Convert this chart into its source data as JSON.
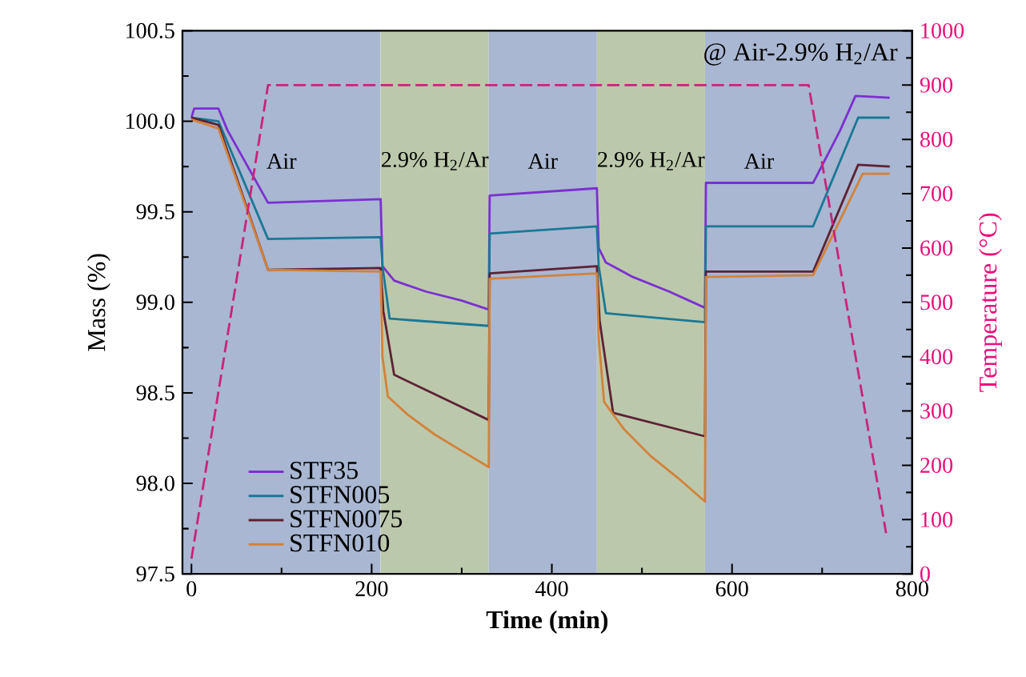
{
  "chart_data": {
    "type": "line",
    "xlabel": "Time (min)",
    "ylabel": "Mass (%)",
    "y2label": "Temperature (°C)",
    "xlim": [
      -10,
      800
    ],
    "xticks": [
      0,
      200,
      400,
      600,
      800
    ],
    "ylim": [
      97.5,
      100.5
    ],
    "yticks": [
      97.5,
      {
        "value": 98,
        "label": "98.0"
      },
      98.5,
      {
        "value": 99,
        "label": "99.0"
      },
      99.5,
      {
        "value": 100,
        "label": "100.0"
      },
      100.5
    ],
    "y2lim": [
      0,
      1000
    ],
    "y2ticks": [
      0,
      100,
      200,
      300,
      400,
      500,
      600,
      700,
      800,
      900,
      1000
    ],
    "annotations": [
      "@ Air-2.9% H$_{2}$/Ar"
    ],
    "bands": [
      {
        "axis": "x",
        "from": -10,
        "to": 210,
        "label": "Air",
        "color": "#a9b7d2"
      },
      {
        "axis": "x",
        "from": 210,
        "to": 330,
        "label": "2.9% H$_{2}$/Ar",
        "color": "#bcc8ab"
      },
      {
        "axis": "x",
        "from": 330,
        "to": 450,
        "label": "Air",
        "color": "#a9b7d2"
      },
      {
        "axis": "x",
        "from": 450,
        "to": 570,
        "label": "2.9% H$_{2}$/Ar",
        "color": "#bcc8ab"
      },
      {
        "axis": "x",
        "from": 570,
        "to": 800,
        "label": "Air",
        "color": "#a9b7d2"
      }
    ],
    "legend": "bottom left",
    "marker": "none",
    "series": [
      {
        "name": "STF35",
        "color": "#7b30d0",
        "line_style": "solid",
        "x": [
          0,
          3,
          30,
          40,
          85,
          210,
          212,
          225,
          260,
          300,
          330,
          331,
          450,
          452,
          460,
          490,
          530,
          570,
          571,
          690,
          720,
          737,
          775
        ],
        "values": [
          100.02,
          100.07,
          100.07,
          99.95,
          99.55,
          99.57,
          99.2,
          99.12,
          99.06,
          99.01,
          98.96,
          99.59,
          99.63,
          99.3,
          99.22,
          99.14,
          99.06,
          98.97,
          99.66,
          99.66,
          99.95,
          100.14,
          100.13
        ]
      },
      {
        "name": "STFN005",
        "color": "#1a7896",
        "line_style": "solid",
        "x": [
          0,
          30,
          85,
          210,
          212,
          220,
          330,
          331,
          450,
          452,
          460,
          570,
          571,
          690,
          740,
          775
        ],
        "values": [
          100.02,
          100.0,
          99.35,
          99.36,
          99.2,
          98.91,
          98.87,
          99.38,
          99.42,
          99.2,
          98.94,
          98.89,
          99.42,
          99.42,
          100.02,
          100.02
        ]
      },
      {
        "name": "STFN0075",
        "color": "#5c2234",
        "line_style": "solid",
        "x": [
          0,
          30,
          85,
          210,
          213,
          225,
          330,
          331,
          450,
          453,
          468,
          570,
          571,
          690,
          740,
          775
        ],
        "values": [
          100.02,
          99.98,
          99.18,
          99.19,
          98.95,
          98.6,
          98.35,
          99.16,
          99.2,
          98.9,
          98.39,
          98.26,
          99.17,
          99.17,
          99.76,
          99.75
        ]
      },
      {
        "name": "STFN010",
        "color": "#d2823a",
        "line_style": "solid",
        "x": [
          0,
          30,
          85,
          210,
          212,
          218,
          240,
          270,
          300,
          330,
          331,
          450,
          452,
          458,
          480,
          510,
          540,
          570,
          571,
          690,
          745,
          775
        ],
        "values": [
          100.01,
          99.96,
          99.18,
          99.17,
          98.7,
          98.48,
          98.38,
          98.27,
          98.18,
          98.09,
          99.13,
          99.16,
          98.8,
          98.45,
          98.3,
          98.15,
          98.03,
          97.9,
          99.14,
          99.15,
          99.71,
          99.71
        ]
      },
      {
        "color": "#c8247c",
        "line_style": "dashed",
        "axis": "y2",
        "x": [
          0,
          85,
          685,
          771
        ],
        "values": [
          28,
          900,
          900,
          75
        ]
      }
    ]
  }
}
